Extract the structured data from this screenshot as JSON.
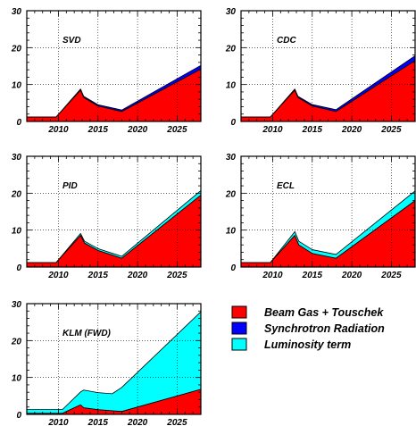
{
  "chart_data": [
    {
      "type": "area",
      "title": "SVD",
      "x_ticks": [
        2010,
        2015,
        2020,
        2025
      ],
      "y_ticks": [
        0,
        10,
        20,
        30
      ],
      "xlim": [
        2006,
        2028
      ],
      "ylim": [
        0,
        30
      ],
      "grid": true,
      "stacked": true,
      "series": [
        {
          "name": "Beam Gas + Touschek",
          "points": [
            [
              2006,
              1.2
            ],
            [
              2009.7,
              1.2
            ],
            [
              2012.8,
              8.5
            ],
            [
              2013.2,
              6.5
            ],
            [
              2015,
              4.2
            ],
            [
              2018,
              2.7
            ],
            [
              2028,
              14.2
            ]
          ]
        },
        {
          "name": "Synchrotron Radiation",
          "points": [
            [
              2012.8,
              0.3
            ],
            [
              2018,
              0.4
            ],
            [
              2028,
              1.0
            ]
          ]
        },
        {
          "name": "Luminosity term",
          "points": [
            [
              2012.8,
              0.0
            ],
            [
              2028,
              0.0
            ]
          ]
        }
      ]
    },
    {
      "type": "area",
      "title": "CDC",
      "x_ticks": [
        2010,
        2015,
        2020,
        2025
      ],
      "y_ticks": [
        0,
        10,
        20,
        30
      ],
      "xlim": [
        2006,
        2028
      ],
      "ylim": [
        0,
        30
      ],
      "grid": true,
      "stacked": true,
      "series": [
        {
          "name": "Beam Gas + Touschek",
          "points": [
            [
              2006,
              1.2
            ],
            [
              2009.7,
              1.2
            ],
            [
              2012.8,
              8.5
            ],
            [
              2013.2,
              6.5
            ],
            [
              2015,
              4.2
            ],
            [
              2018,
              2.7
            ],
            [
              2028,
              16.5
            ]
          ]
        },
        {
          "name": "Synchrotron Radiation",
          "points": [
            [
              2012.8,
              0.3
            ],
            [
              2018,
              0.5
            ],
            [
              2028,
              1.3
            ]
          ]
        },
        {
          "name": "Luminosity term",
          "points": [
            [
              2012.8,
              0.0
            ],
            [
              2028,
              0.0
            ]
          ]
        }
      ]
    },
    {
      "type": "area",
      "title": "PID",
      "x_ticks": [
        2010,
        2015,
        2020,
        2025
      ],
      "y_ticks": [
        0,
        10,
        20,
        30
      ],
      "xlim": [
        2006,
        2028
      ],
      "ylim": [
        0,
        30
      ],
      "grid": true,
      "stacked": true,
      "series": [
        {
          "name": "Beam Gas + Touschek",
          "points": [
            [
              2006,
              1.2
            ],
            [
              2009.7,
              1.2
            ],
            [
              2012.8,
              8.6
            ],
            [
              2013.3,
              6.5
            ],
            [
              2015,
              4.5
            ],
            [
              2018,
              2.4
            ],
            [
              2028,
              19.5
            ]
          ]
        },
        {
          "name": "Synchrotron Radiation",
          "points": [
            [
              2012.8,
              0.0
            ],
            [
              2028,
              0.0
            ]
          ]
        },
        {
          "name": "Luminosity term",
          "points": [
            [
              2012.8,
              0.5
            ],
            [
              2018,
              0.5
            ],
            [
              2028,
              1.2
            ]
          ]
        }
      ]
    },
    {
      "type": "area",
      "title": "ECL",
      "x_ticks": [
        2010,
        2015,
        2020,
        2025
      ],
      "y_ticks": [
        0,
        10,
        20,
        30
      ],
      "xlim": [
        2006,
        2028
      ],
      "ylim": [
        0,
        30
      ],
      "grid": true,
      "stacked": true,
      "series": [
        {
          "name": "Beam Gas + Touschek",
          "points": [
            [
              2006,
              1.2
            ],
            [
              2009.7,
              1.2
            ],
            [
              2012.8,
              8.6
            ],
            [
              2013.3,
              6.0
            ],
            [
              2015,
              3.7
            ],
            [
              2018,
              2.4
            ],
            [
              2028,
              18.0
            ]
          ]
        },
        {
          "name": "Synchrotron Radiation",
          "points": [
            [
              2012.8,
              0.0
            ],
            [
              2028,
              0.0
            ]
          ]
        },
        {
          "name": "Luminosity term",
          "points": [
            [
              2012.8,
              1.0
            ],
            [
              2018,
              1.0
            ],
            [
              2028,
              2.6
            ]
          ]
        }
      ]
    },
    {
      "type": "area",
      "title": "KLM (FWD)",
      "x_ticks": [
        2010,
        2015,
        2020,
        2025
      ],
      "y_ticks": [
        0,
        10,
        20,
        30
      ],
      "xlim": [
        2006,
        2028
      ],
      "ylim": [
        0,
        30
      ],
      "grid": true,
      "stacked": true,
      "series": [
        {
          "name": "Beam Gas + Touschek",
          "points": [
            [
              2006,
              0.3
            ],
            [
              2010.5,
              0.3
            ],
            [
              2012.8,
              2.6
            ],
            [
              2013.2,
              1.8
            ],
            [
              2015,
              1.3
            ],
            [
              2018,
              0.8
            ],
            [
              2028,
              6.8
            ]
          ]
        },
        {
          "name": "Synchrotron Radiation",
          "points": [
            [
              2012.8,
              0.0
            ],
            [
              2028,
              0.0
            ]
          ]
        },
        {
          "name": "Luminosity term",
          "points": [
            [
              2006,
              1.0
            ],
            [
              2010.5,
              1.0
            ],
            [
              2012.8,
              3.5
            ],
            [
              2013.2,
              4.8
            ],
            [
              2015,
              4.6
            ],
            [
              2016.8,
              4.6
            ],
            [
              2016.8,
              6.5
            ],
            [
              2018,
              6.5
            ],
            [
              2028,
              21.0
            ]
          ]
        }
      ]
    }
  ],
  "legend": {
    "placement": "bottom-right",
    "entries": [
      {
        "label": "Beam Gas + Touschek",
        "color": "#ff0000"
      },
      {
        "label": "Synchrotron Radiation",
        "color": "#0000ff"
      },
      {
        "label": "Luminosity term",
        "color": "#00ffff"
      }
    ]
  },
  "colors": {
    "beam_gas_touschek": "#ff0000",
    "synchrotron_radiation": "#0000ff",
    "luminosity_term": "#00ffff"
  }
}
